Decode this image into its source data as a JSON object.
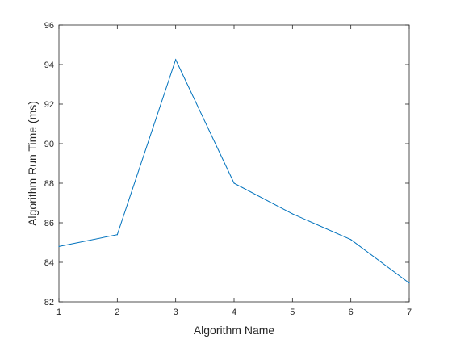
{
  "chart_data": {
    "type": "line",
    "title": "",
    "xlabel": "Algorithm Name",
    "ylabel": "Algorithm Run Time (ms)",
    "x": [
      1,
      2,
      3,
      4,
      5,
      6,
      7
    ],
    "series": [
      {
        "values": [
          84.8,
          85.4,
          94.25,
          88.0,
          86.45,
          85.15,
          82.95
        ],
        "color": "#0072BD"
      }
    ],
    "xlim": [
      1,
      7
    ],
    "ylim": [
      82,
      96
    ],
    "xticks": [
      "1",
      "2",
      "3",
      "4",
      "5",
      "6",
      "7"
    ],
    "yticks": [
      "82",
      "84",
      "86",
      "88",
      "90",
      "92",
      "94",
      "96"
    ],
    "grid": false,
    "legend": "none"
  }
}
